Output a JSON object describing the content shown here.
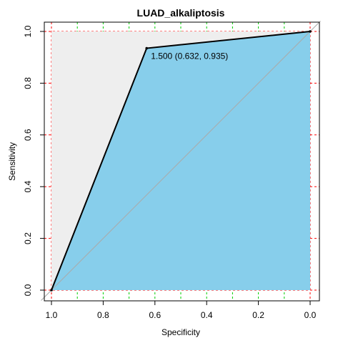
{
  "chart_data": {
    "type": "line",
    "title": "LUAD_alkaliptosis",
    "xlabel": "Specificity",
    "ylabel": "Sensitivity",
    "x_reversed": true,
    "xlim": [
      1.0,
      0.0
    ],
    "ylim": [
      0.0,
      1.0
    ],
    "x_ticks": [
      "1.0",
      "0.8",
      "0.6",
      "0.4",
      "0.2",
      "0.0"
    ],
    "y_ticks": [
      "0.0",
      "0.2",
      "0.4",
      "0.6",
      "0.8",
      "1.0"
    ],
    "grid": true,
    "grid_major_color": "#ff0000",
    "grid_minor_color": "#00cc00",
    "roc_curve": {
      "specificity": [
        1.0,
        0.632,
        0.0
      ],
      "sensitivity": [
        0.0,
        0.935,
        1.0
      ]
    },
    "best_threshold": {
      "specificity": 0.632,
      "sensitivity": 0.935,
      "label": "1.500 (0.632, 0.935)"
    },
    "colors": {
      "auc_fill": "#87ceeb",
      "max_auc_fill": "#eeeeee",
      "curve": "#000000",
      "diagonal": "#aaaaaa"
    }
  }
}
